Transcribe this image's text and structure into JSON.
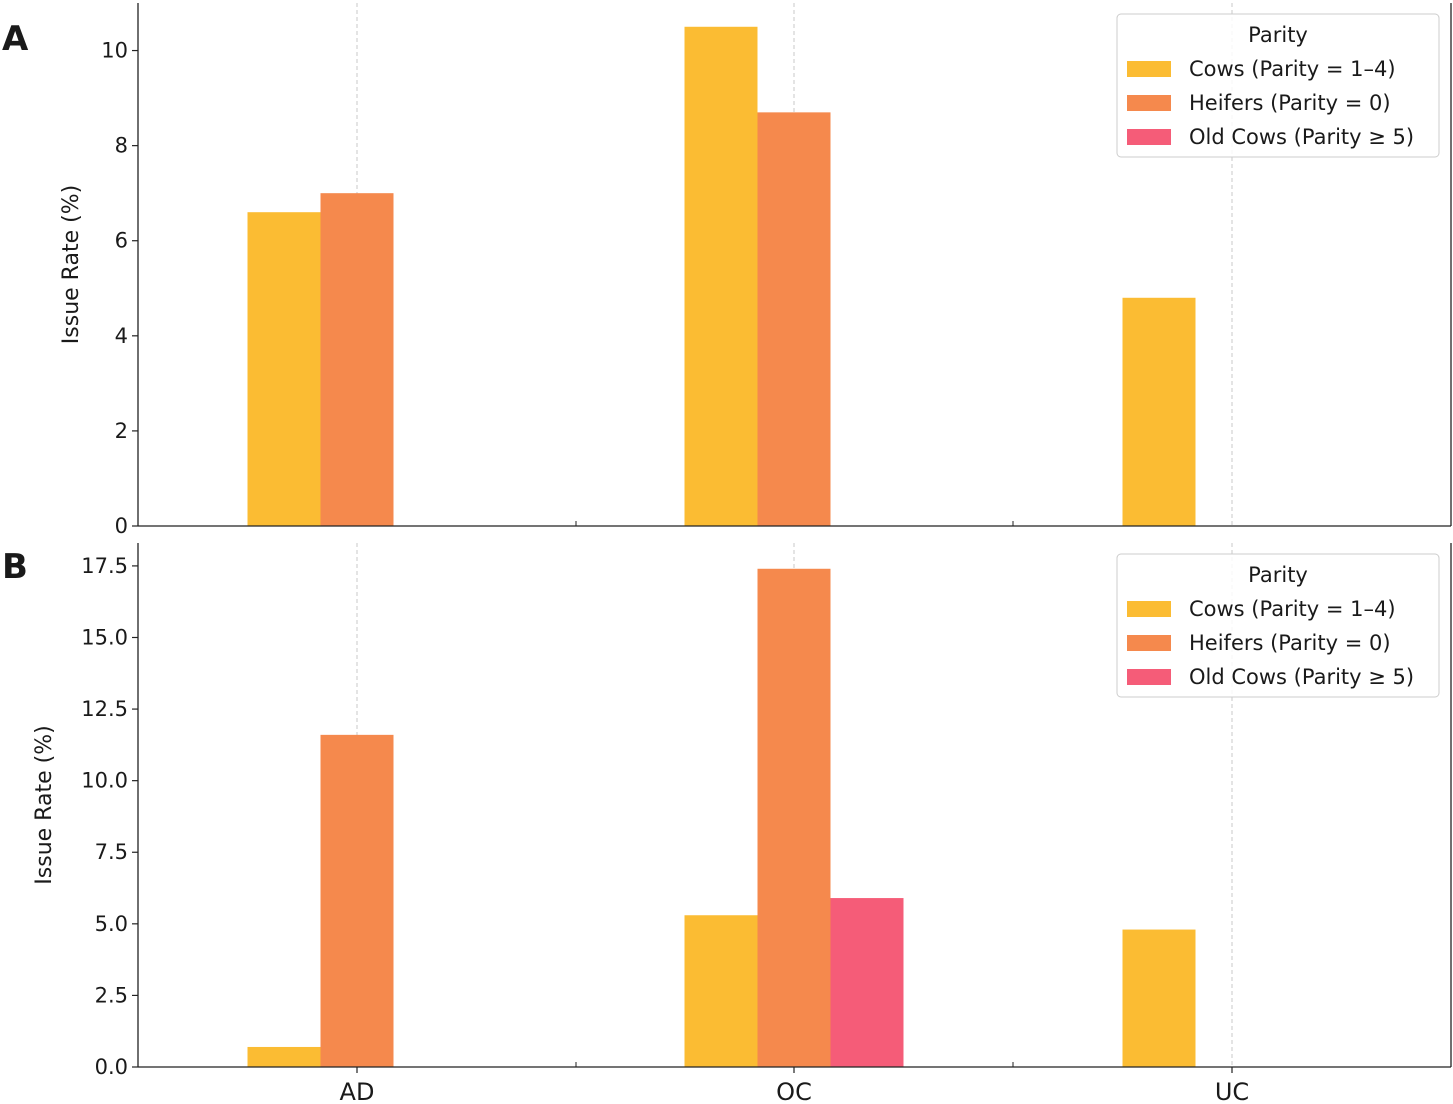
{
  "chart_data": [
    {
      "type": "bar",
      "panel_label": "A",
      "categories": [
        "AD",
        "OC",
        "UC"
      ],
      "series": [
        {
          "name": "Cows (Parity = 1–4)",
          "color": "#fbbc33",
          "values": [
            6.6,
            10.5,
            4.8
          ]
        },
        {
          "name": "Heifers (Parity = 0)",
          "color": "#f5894d",
          "values": [
            7.0,
            8.7,
            0
          ]
        },
        {
          "name": "Old Cows (Parity ≥ 5)",
          "color": "#f55c78",
          "values": [
            0,
            0,
            0
          ]
        }
      ],
      "ylabel": "Issue Rate (%)",
      "ylim": [
        0,
        11
      ],
      "yticks": [
        0,
        2,
        4,
        6,
        8,
        10
      ],
      "ytick_labels": [
        "0",
        "2",
        "4",
        "6",
        "8",
        "10"
      ],
      "show_x_labels": false,
      "grid": "vertical dashed at categories",
      "legend": {
        "title": "Parity",
        "placement": "top-right"
      }
    },
    {
      "type": "bar",
      "panel_label": "B",
      "categories": [
        "AD",
        "OC",
        "UC"
      ],
      "series": [
        {
          "name": "Cows (Parity = 1–4)",
          "color": "#fbbc33",
          "values": [
            0.7,
            5.3,
            4.8
          ]
        },
        {
          "name": "Heifers (Parity = 0)",
          "color": "#f5894d",
          "values": [
            11.6,
            17.4,
            0
          ]
        },
        {
          "name": "Old Cows (Parity ≥ 5)",
          "color": "#f55c78",
          "values": [
            0,
            5.9,
            0
          ]
        }
      ],
      "ylabel": "Issue Rate (%)",
      "ylim": [
        0,
        18.3
      ],
      "yticks": [
        0,
        2.5,
        5,
        7.5,
        10,
        12.5,
        15,
        17.5
      ],
      "ytick_labels": [
        "0.0",
        "2.5",
        "5.0",
        "7.5",
        "10.0",
        "12.5",
        "15.0",
        "17.5"
      ],
      "show_x_labels": true,
      "grid": "vertical dashed at categories",
      "legend": {
        "title": "Parity",
        "placement": "top-right"
      }
    }
  ]
}
